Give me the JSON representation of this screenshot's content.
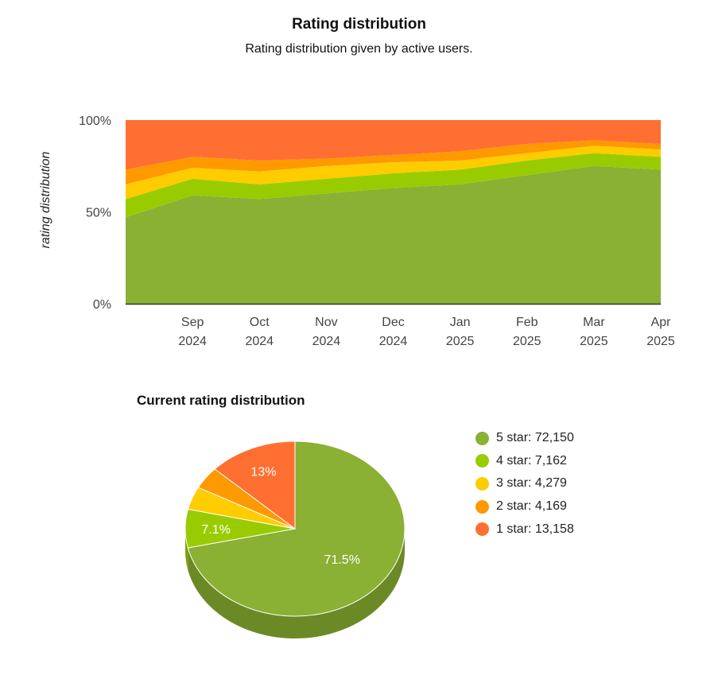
{
  "chart_data": [
    {
      "type": "area",
      "stacked": true,
      "percent": true,
      "title": "Rating distribution",
      "subtitle": "Rating distribution given by active users.",
      "xlabel": "",
      "ylabel": "rating distribution",
      "yticks": [
        "0%",
        "50%",
        "100%"
      ],
      "ylim": [
        0,
        100
      ],
      "x": [
        "2024-08",
        "2024-09",
        "2024-10",
        "2024-11",
        "2024-12",
        "2025-01",
        "2025-02",
        "2025-03",
        "2025-04"
      ],
      "x_labels": [
        {
          "month": "Sep",
          "year": "2024"
        },
        {
          "month": "Oct",
          "year": "2024"
        },
        {
          "month": "Nov",
          "year": "2024"
        },
        {
          "month": "Dec",
          "year": "2024"
        },
        {
          "month": "Jan",
          "year": "2025"
        },
        {
          "month": "Feb",
          "year": "2025"
        },
        {
          "month": "Mar",
          "year": "2025"
        },
        {
          "month": "Apr",
          "year": "2025"
        }
      ],
      "series": [
        {
          "color": "#8ab034",
          "values": [
            47,
            59,
            57,
            60,
            63,
            65,
            70,
            75,
            73
          ]
        },
        {
          "color": "#99cc00",
          "values": [
            10,
            9,
            8,
            8,
            8,
            8,
            8,
            7,
            7
          ]
        },
        {
          "color": "#ffcc00",
          "values": [
            8,
            6,
            7,
            7,
            6,
            5,
            4,
            4,
            4
          ]
        },
        {
          "color": "#ff9900",
          "values": [
            8,
            6,
            6,
            4,
            4,
            5,
            5,
            3,
            3
          ]
        },
        {
          "color": "#ff6f31",
          "values": [
            27,
            20,
            22,
            21,
            19,
            17,
            13,
            11,
            13
          ]
        }
      ],
      "grid": false
    },
    {
      "type": "pie",
      "title": "Current rating distribution",
      "three_d": true,
      "slices": [
        {
          "label": "5 star",
          "value": 72150,
          "display": "72,150",
          "color": "#8ab034",
          "side_color": "#6b8a26",
          "pct_label": "71.5%"
        },
        {
          "label": "4 star",
          "value": 7162,
          "display": "7,162",
          "color": "#99cc00",
          "side_color": "#7aa300",
          "pct_label": "7.1%"
        },
        {
          "label": "3 star",
          "value": 4279,
          "display": "4,279",
          "color": "#ffcc00",
          "side_color": "#cca300",
          "pct_label": ""
        },
        {
          "label": "2 star",
          "value": 4169,
          "display": "4,169",
          "color": "#ff9900",
          "side_color": "#cc7a00",
          "pct_label": ""
        },
        {
          "label": "1 star",
          "value": 13158,
          "display": "13,158",
          "color": "#ff6f31",
          "side_color": "#cc5927",
          "pct_label": "13%"
        }
      ],
      "legend_position": "right"
    }
  ]
}
